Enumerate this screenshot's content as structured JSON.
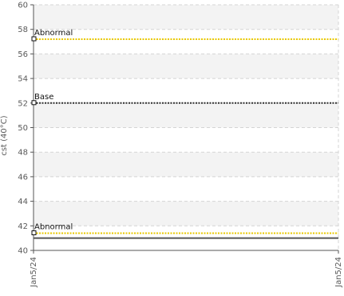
{
  "chart_data": {
    "type": "line",
    "ylabel": "cst (40°C)",
    "ylim": [
      40,
      60
    ],
    "yticks": [
      40,
      42,
      44,
      46,
      48,
      50,
      52,
      54,
      56,
      58,
      60
    ],
    "x_categories": [
      "Jan5/24",
      "Jan5/24"
    ],
    "grid": true,
    "reference_lines": [
      {
        "label": "Abnormal",
        "value": 57.2,
        "color": "#e8c800",
        "style": "dotted"
      },
      {
        "label": "Base",
        "value": 52.0,
        "color": "#333333",
        "style": "dotted"
      },
      {
        "label": "Abnormal",
        "value": 41.4,
        "color": "#e8c800",
        "style": "dotted"
      }
    ],
    "series": [
      {
        "values": [
          41.0,
          41.0
        ],
        "color": "#555555"
      }
    ]
  }
}
